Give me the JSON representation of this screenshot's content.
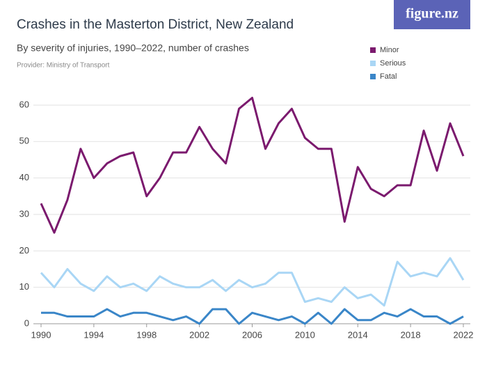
{
  "brand": "figure.nz",
  "chart_data": {
    "type": "line",
    "title": "Crashes in the Masterton District, New Zealand",
    "subtitle": "By severity of injuries, 1990–2022, number of crashes",
    "provider": "Provider: Ministry of Transport",
    "x": [
      1990,
      1991,
      1992,
      1993,
      1994,
      1995,
      1996,
      1997,
      1998,
      1999,
      2000,
      2001,
      2002,
      2003,
      2004,
      2005,
      2006,
      2007,
      2008,
      2009,
      2010,
      2011,
      2012,
      2013,
      2014,
      2015,
      2016,
      2017,
      2018,
      2019,
      2020,
      2021,
      2022
    ],
    "series": [
      {
        "name": "Minor",
        "color": "#7b1a6e",
        "values": [
          33,
          25,
          34,
          48,
          40,
          44,
          46,
          47,
          35,
          40,
          47,
          47,
          54,
          48,
          44,
          59,
          62,
          48,
          55,
          59,
          51,
          48,
          48,
          28,
          43,
          37,
          35,
          38,
          38,
          53,
          42,
          55,
          46
        ]
      },
      {
        "name": "Serious",
        "color": "#a9d6f5",
        "values": [
          14,
          10,
          15,
          11,
          9,
          13,
          10,
          11,
          9,
          13,
          11,
          10,
          10,
          12,
          9,
          12,
          10,
          11,
          14,
          14,
          6,
          7,
          6,
          10,
          7,
          8,
          5,
          17,
          13,
          14,
          13,
          18,
          12
        ]
      },
      {
        "name": "Fatal",
        "color": "#3a86c8",
        "values": [
          3,
          3,
          2,
          2,
          2,
          4,
          2,
          3,
          3,
          2,
          1,
          2,
          0,
          4,
          4,
          0,
          3,
          2,
          1,
          2,
          0,
          3,
          0,
          4,
          1,
          1,
          3,
          2,
          4,
          2,
          2,
          0,
          2
        ]
      }
    ],
    "xlim": [
      1990,
      2022
    ],
    "xticks": [
      1990,
      1994,
      1998,
      2002,
      2006,
      2010,
      2014,
      2018,
      2022
    ],
    "ylim": [
      0,
      62
    ],
    "yticks": [
      0,
      10,
      20,
      30,
      40,
      50,
      60
    ],
    "grid": true,
    "legend": "top-right"
  }
}
